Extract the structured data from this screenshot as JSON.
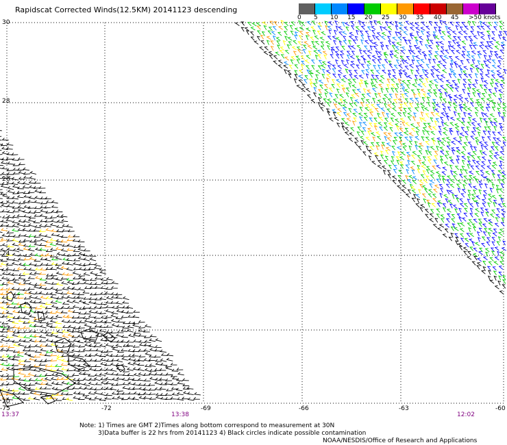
{
  "title": "Rapidscat Corrected Winds(12.5KM) 20141123 descending",
  "color_scale": {
    "colors": [
      "#606060",
      "#00ccff",
      "#0088ff",
      "#0000ff",
      "#00cc00",
      "#ffff00",
      "#ff9900",
      "#ff0000",
      "#cc0000",
      "#996633",
      "#cc00cc",
      "#660099"
    ],
    "labels": [
      "0",
      "5",
      "10",
      "15",
      "20",
      "25",
      "30",
      "35",
      "40",
      "45",
      ">50 knots"
    ]
  },
  "lat_labels": [
    "30",
    "28",
    "26",
    "24",
    "22",
    "20"
  ],
  "lon_labels": [
    "-75",
    "-72",
    "-69",
    "-66",
    "-63",
    "-60"
  ],
  "times": [
    "13:37",
    "13:38",
    "12:02"
  ],
  "notes": {
    "line1": "Note: 1) Times are GMT 2)Times along bottom correspond to measurement at 30N",
    "line2": "3)Data buffer is 22 hrs from 20141123 4) Black circles indicate possible contamination",
    "credit": "NOAA/NESDIS/Office of Research and Applications"
  }
}
